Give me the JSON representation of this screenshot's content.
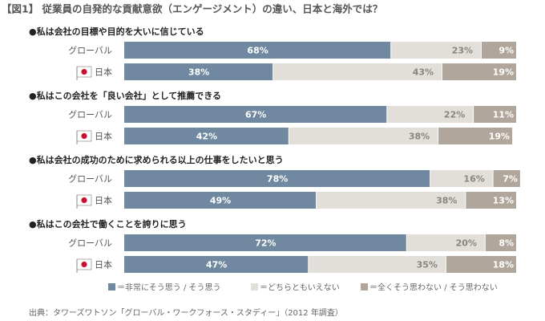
{
  "title": "【図1】 従業員の自発的な貢献意欲（エンゲージメント）の違い、日本と海外では？",
  "legend": [
    {
      "name": "＝非常にそう思う / そう思う",
      "color": "#7089a0"
    },
    {
      "name": "＝どちらともいえない",
      "color": "#e2ded9"
    },
    {
      "name": "＝全くそう思わない / そう思わない",
      "color": "#b1a69b"
    }
  ],
  "source": "出典：タワーズワトソン「グローバル・ワークフォース・スタディー」（2012 年調査）",
  "chart_data": [
    {
      "type": "bar",
      "title": "●私は会社の目標や目的を大いに信じている",
      "categories": [
        "グローバル",
        "日本"
      ],
      "xlim": [
        0,
        100
      ],
      "series": [
        {
          "values": [
            68,
            38
          ],
          "value_labels": [
            "68%",
            "38%"
          ]
        },
        {
          "values": [
            23,
            43
          ],
          "value_labels": [
            "23%",
            "43%"
          ]
        },
        {
          "values": [
            9,
            19
          ],
          "value_labels": [
            "9%",
            "19%"
          ]
        }
      ]
    },
    {
      "type": "bar",
      "title": "●私はこの会社を「良い会社」として推薦できる",
      "categories": [
        "グローバル",
        "日本"
      ],
      "xlim": [
        0,
        100
      ],
      "series": [
        {
          "values": [
            67,
            42
          ],
          "value_labels": [
            "67%",
            "42%"
          ]
        },
        {
          "values": [
            22,
            38
          ],
          "value_labels": [
            "22%",
            "38%"
          ]
        },
        {
          "values": [
            11,
            19
          ],
          "value_labels": [
            "11%",
            "19%"
          ]
        }
      ]
    },
    {
      "type": "bar",
      "title": "●私は会社の成功のために求められる以上の仕事をしたいと思う",
      "categories": [
        "グローバル",
        "日本"
      ],
      "xlim": [
        0,
        100
      ],
      "series": [
        {
          "values": [
            78,
            49
          ],
          "value_labels": [
            "78%",
            "49%"
          ]
        },
        {
          "values": [
            16,
            38
          ],
          "value_labels": [
            "16%",
            "38%"
          ]
        },
        {
          "values": [
            7,
            13
          ],
          "value_labels": [
            "7%",
            "13%"
          ]
        }
      ]
    },
    {
      "type": "bar",
      "title": "●私はこの会社で働くことを誇りに思う",
      "categories": [
        "グローバル",
        "日本"
      ],
      "xlim": [
        0,
        100
      ],
      "series": [
        {
          "values": [
            72,
            47
          ],
          "value_labels": [
            "72%",
            "47%"
          ]
        },
        {
          "values": [
            20,
            35
          ],
          "value_labels": [
            "20%",
            "35%"
          ]
        },
        {
          "values": [
            8,
            18
          ],
          "value_labels": [
            "8%",
            "18%"
          ]
        }
      ]
    }
  ]
}
